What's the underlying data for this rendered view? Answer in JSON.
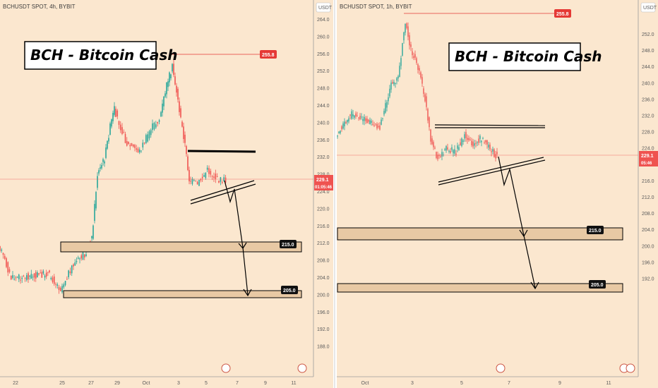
{
  "panels": [
    {
      "id": "left",
      "symbol": "BCHUSDT SPOT, 4h, BYBIT",
      "currency": "USDT",
      "title": "BCH - Bitcoin Cash",
      "last_price": "229.1",
      "countdown": "01:05:46",
      "high_label": "255.8",
      "zones": [
        {
          "label": "215.0"
        },
        {
          "label": "205.0"
        }
      ],
      "y_ticks": [
        "264.0",
        "260.0",
        "256.0",
        "252.0",
        "248.0",
        "244.0",
        "240.0",
        "236.0",
        "232.0",
        "228.0",
        "224.0",
        "220.0",
        "216.0",
        "212.0",
        "208.0",
        "204.0",
        "200.0",
        "196.0",
        "192.0",
        "188.0"
      ],
      "x_ticks": [
        "22",
        "25",
        "27",
        "29",
        "Oct",
        "3",
        "5",
        "7",
        "9",
        "11"
      ]
    },
    {
      "id": "right",
      "symbol": "BCHUSDT SPOT, 1h, BYBIT",
      "currency": "USDT",
      "title": "BCH - Bitcoin Cash",
      "last_price": "229.1",
      "countdown": "05:46",
      "high_label": "255.8",
      "zones": [
        {
          "label": "215.0"
        },
        {
          "label": "205.0"
        }
      ],
      "y_ticks": [
        "252.0",
        "248.0",
        "244.0",
        "240.0",
        "236.0",
        "232.0",
        "228.0",
        "224.0",
        "220.0",
        "216.0",
        "212.0",
        "208.0",
        "204.0",
        "200.0",
        "196.0",
        "192.0"
      ],
      "x_ticks": [
        "Oct",
        "3",
        "5",
        "7",
        "9",
        "11"
      ]
    }
  ],
  "colors": {
    "bg": "#fbe7cf",
    "up": "#26a69a",
    "down": "#ef5350",
    "high_line": "#e53935",
    "zone_fill": "#e8c9a4",
    "price_line": "#ef5350"
  },
  "chart_data": [
    {
      "type": "candlestick",
      "title": "BCH - Bitcoin Cash",
      "ylim": [
        188,
        266
      ],
      "annotations": {
        "high": 255.8,
        "support_zones": [
          215.0,
          205.0
        ],
        "last_price": 229.1
      }
    },
    {
      "type": "candlestick",
      "title": "BCH - Bitcoin Cash",
      "ylim": [
        189,
        255
      ],
      "annotations": {
        "high": 255.8,
        "support_zones": [
          215.0,
          205.0
        ],
        "last_price": 229.1
      }
    }
  ]
}
